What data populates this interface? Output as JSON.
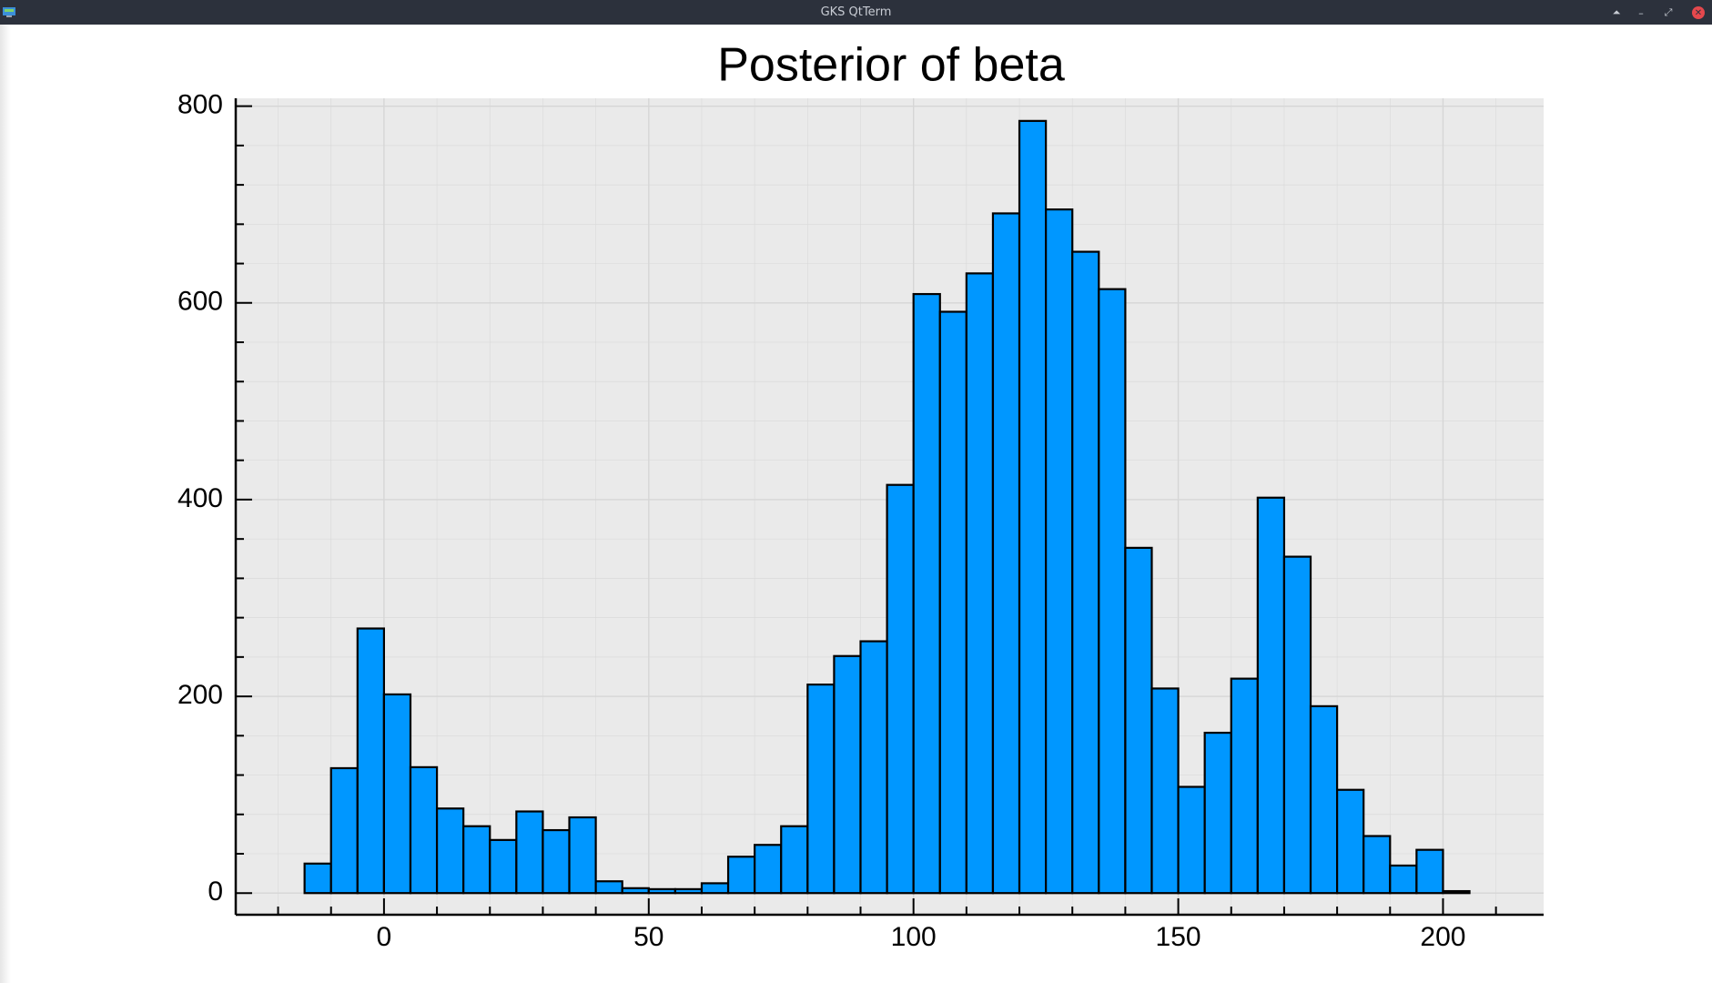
{
  "window": {
    "title": "GKS QtTerm",
    "controls": {
      "keep_above": "⏶",
      "minimize": "–",
      "maximize": "⤢",
      "close": "✕"
    },
    "icon": "app-icon"
  },
  "colors": {
    "bar_fill": "#0097ff",
    "bar_stroke": "#000000",
    "plot_background": "#eaeaea",
    "grid": "#d6d6d6",
    "titlebar": "#2c313c"
  },
  "chart_data": {
    "type": "bar",
    "title": "Posterior of beta",
    "xlabel": "",
    "ylabel": "",
    "bin_width": 5,
    "bin_starts": [
      -15,
      -10,
      -5,
      0,
      5,
      10,
      15,
      20,
      25,
      30,
      35,
      40,
      45,
      50,
      55,
      60,
      65,
      70,
      75,
      80,
      85,
      90,
      95,
      100,
      105,
      110,
      115,
      120,
      125,
      130,
      135,
      140,
      145,
      150,
      155,
      160,
      165,
      170,
      175,
      180,
      185,
      190,
      195,
      200
    ],
    "values": [
      30,
      127,
      269,
      202,
      128,
      86,
      68,
      54,
      83,
      64,
      77,
      12,
      5,
      4,
      4,
      10,
      37,
      49,
      68,
      212,
      241,
      256,
      415,
      609,
      591,
      630,
      691,
      785,
      695,
      652,
      614,
      351,
      208,
      108,
      163,
      218,
      402,
      342,
      190,
      105,
      58,
      28,
      44,
      2
    ],
    "xlim": [
      -28,
      219
    ],
    "ylim": [
      -22,
      808
    ],
    "xticks": [
      0,
      50,
      100,
      150,
      200
    ],
    "xtick_labels": [
      "0",
      "50",
      "100",
      "150",
      "200"
    ],
    "yticks": [
      0,
      200,
      400,
      600,
      800
    ],
    "ytick_labels": [
      "0",
      "200",
      "400",
      "600",
      "800"
    ],
    "grid": true,
    "legend": "none"
  }
}
